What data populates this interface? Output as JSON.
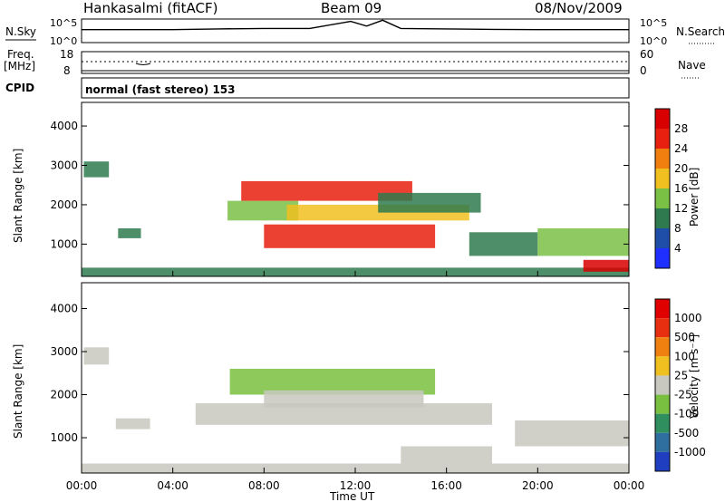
{
  "header": {
    "station": "Hankasalmi (fitACF)",
    "beam": "Beam 09",
    "date": "08/Nov/2009"
  },
  "top_strip": {
    "left_label": "N.Sky",
    "right_label": "N.Search",
    "left_ticks": [
      "10^5",
      "10^0"
    ],
    "right_ticks": [
      "10^5",
      "10^0"
    ]
  },
  "freq_strip": {
    "label_line1": "Freq.",
    "label_line2": "[MHz]",
    "ticks": [
      "18",
      "8"
    ],
    "right_label": "Nave",
    "right_ticks": [
      "60",
      "0"
    ],
    "cpid_label": "CPID"
  },
  "cpid_text": "normal (fast stereo) 153",
  "time_axis": {
    "ticks": [
      "00:00",
      "04:00",
      "08:00",
      "12:00",
      "16:00",
      "20:00",
      "00:00"
    ],
    "label": "Time UT"
  },
  "panels": {
    "power": {
      "ylabel": "Slant Range [km]",
      "yticks": [
        "4000",
        "3000",
        "2000",
        "1000"
      ],
      "colorbar_label": "Power [dB]",
      "colorbar_ticks": [
        "28",
        "24",
        "20",
        "16",
        "12",
        "8",
        "4"
      ],
      "colors": [
        "#1f2fff",
        "#1f4ea8",
        "#2f7a4e",
        "#7ac045",
        "#f0c020",
        "#f07f10",
        "#e8200f",
        "#d80000"
      ]
    },
    "velocity": {
      "ylabel": "Slant Range [km]",
      "yticks": [
        "4000",
        "3000",
        "2000",
        "1000"
      ],
      "colorbar_label": "Velocity [m s⁻¹]",
      "colorbar_ticks": [
        "1000",
        "500",
        "100",
        "25",
        "-25",
        "-100",
        "-500",
        "-1000"
      ],
      "colors": [
        "#1f3fc0",
        "#2f6fa0",
        "#2f8f5f",
        "#7ac040",
        "#c8c8c0",
        "#f0c020",
        "#f08010",
        "#e83010",
        "#e00000"
      ]
    }
  },
  "chart_data": [
    {
      "type": "line",
      "title": "N.Sky / N.Search",
      "x": [
        0,
        2,
        4,
        6,
        8,
        10,
        11.8,
        12.5,
        13.2,
        14,
        16,
        18,
        20,
        22,
        24
      ],
      "values": [
        0.55,
        0.55,
        0.55,
        0.58,
        0.6,
        0.6,
        0.9,
        0.7,
        0.95,
        0.6,
        0.58,
        0.56,
        0.55,
        0.55,
        0.55
      ],
      "ylim": [
        0,
        1
      ]
    },
    {
      "type": "heatmap",
      "title": "Power [dB]",
      "xlabel": "Time UT",
      "ylabel": "Slant Range [km]",
      "xlim": [
        0,
        24
      ],
      "ylim": [
        180,
        4600
      ],
      "clim": [
        0,
        32
      ],
      "regions": [
        {
          "t0": 0,
          "t1": 24,
          "r0": 180,
          "r1": 400,
          "value": 9
        },
        {
          "t0": 0.1,
          "t1": 1.2,
          "r0": 2700,
          "r1": 3100,
          "value": 9
        },
        {
          "t0": 1.6,
          "t1": 2.6,
          "r0": 1150,
          "r1": 1400,
          "value": 11
        },
        {
          "t0": 6.4,
          "t1": 9.5,
          "r0": 1600,
          "r1": 2100,
          "value": 12
        },
        {
          "t0": 7,
          "t1": 14.5,
          "r0": 2100,
          "r1": 2600,
          "value": 24
        },
        {
          "t0": 8,
          "t1": 15.5,
          "r0": 900,
          "r1": 1500,
          "value": 27
        },
        {
          "t0": 9,
          "t1": 17,
          "r0": 1600,
          "r1": 2000,
          "value": 16
        },
        {
          "t0": 13,
          "t1": 17.5,
          "r0": 1800,
          "r1": 2300,
          "value": 10
        },
        {
          "t0": 17,
          "t1": 20,
          "r0": 700,
          "r1": 1300,
          "value": 9
        },
        {
          "t0": 20,
          "t1": 24,
          "r0": 700,
          "r1": 1400,
          "value": 13
        },
        {
          "t0": 22,
          "t1": 24,
          "r0": 300,
          "r1": 600,
          "value": 28
        }
      ]
    },
    {
      "type": "heatmap",
      "title": "Velocity [m s^-1]",
      "xlabel": "Time UT",
      "ylabel": "Slant Range [km]",
      "xlim": [
        0,
        24
      ],
      "ylim": [
        180,
        4600
      ],
      "clim": [
        -1000,
        1000
      ],
      "regions": [
        {
          "t0": 0,
          "t1": 24,
          "r0": 180,
          "r1": 400,
          "value": 60
        },
        {
          "t0": 0.1,
          "t1": 1.2,
          "r0": 2700,
          "r1": 3100,
          "value": 0
        },
        {
          "t0": 1.5,
          "t1": 3,
          "r0": 1200,
          "r1": 1450,
          "value": 0
        },
        {
          "t0": 5,
          "t1": 18,
          "r0": 1300,
          "r1": 1800,
          "value": 0
        },
        {
          "t0": 6.5,
          "t1": 15.5,
          "r0": 2000,
          "r1": 2600,
          "value": -300
        },
        {
          "t0": 8,
          "t1": 15,
          "r0": 1700,
          "r1": 2100,
          "value": -60
        },
        {
          "t0": 14,
          "t1": 18,
          "r0": 400,
          "r1": 800,
          "value": -80
        },
        {
          "t0": 19,
          "t1": 24,
          "r0": 800,
          "r1": 1400,
          "value": 0
        }
      ]
    }
  ]
}
